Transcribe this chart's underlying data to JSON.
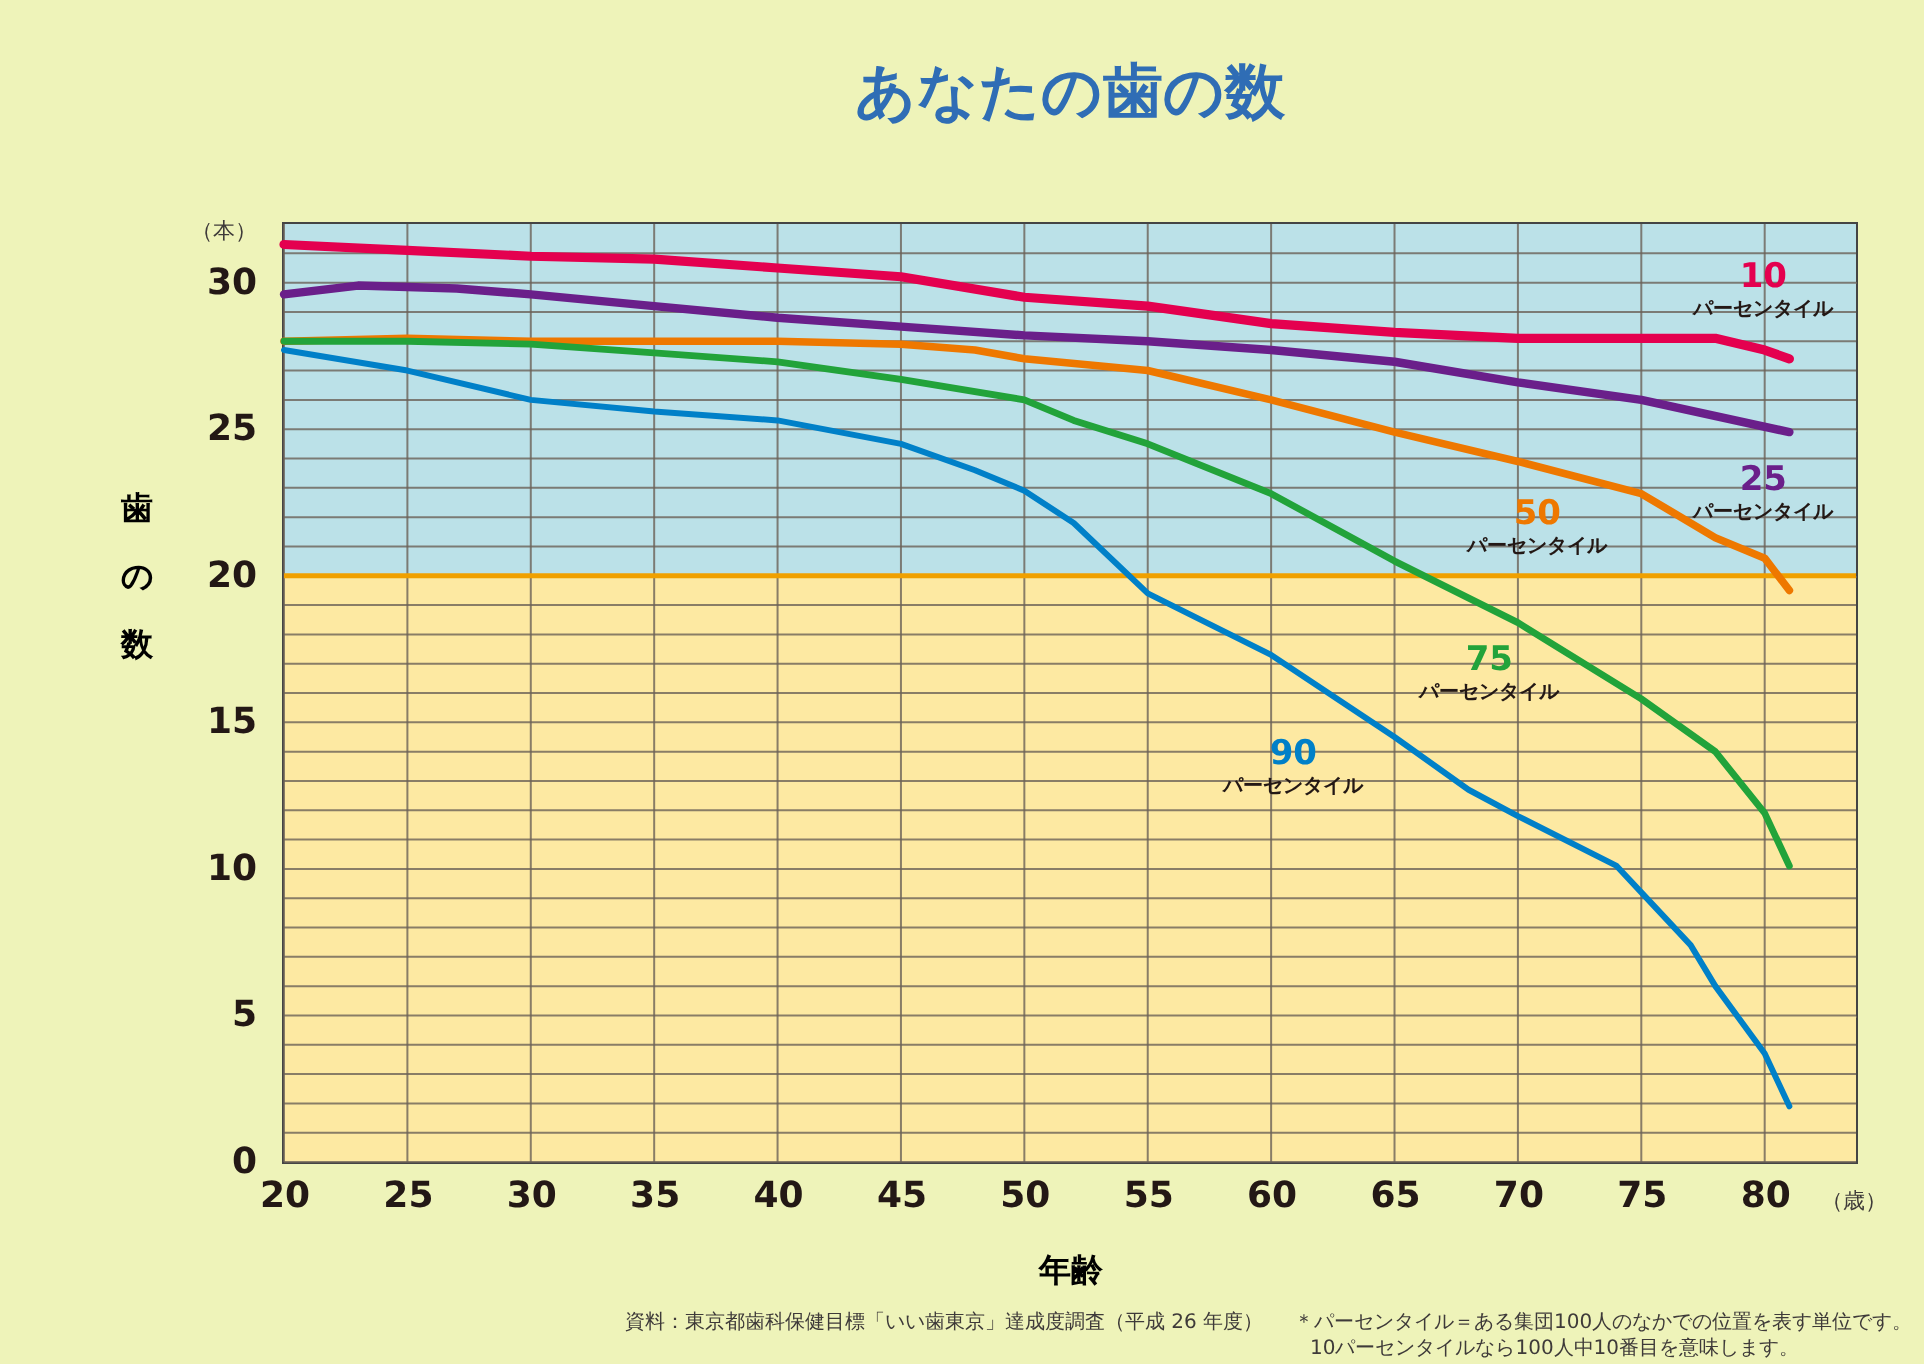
{
  "chart_data": {
    "type": "line",
    "title": "あなたの歯の数",
    "xlabel": "年齢",
    "ylabel": "歯の数",
    "xlim": [
      20,
      83.7
    ],
    "ylim": [
      0,
      32
    ],
    "xticks": [
      20,
      25,
      30,
      35,
      40,
      45,
      50,
      55,
      60,
      65,
      70,
      75,
      80
    ],
    "yticks": [
      0,
      {
        "value": 1,
        "label": null
      },
      {
        "value": 2,
        "label": null
      },
      {
        "value": 3,
        "label": null
      },
      {
        "value": 4,
        "label": null
      },
      5,
      {
        "value": 6,
        "label": null
      },
      {
        "value": 7,
        "label": null
      },
      {
        "value": 8,
        "label": null
      },
      {
        "value": 9,
        "label": null
      },
      10,
      {
        "value": 11,
        "label": null
      },
      {
        "value": 12,
        "label": null
      },
      {
        "value": 13,
        "label": null
      },
      {
        "value": 14,
        "label": null
      },
      15,
      {
        "value": 16,
        "label": null
      },
      {
        "value": 17,
        "label": null
      },
      {
        "value": 18,
        "label": null
      },
      {
        "value": 19,
        "label": null
      },
      20,
      {
        "value": 21,
        "label": null
      },
      {
        "value": 22,
        "label": null
      },
      {
        "value": 23,
        "label": null
      },
      {
        "value": 24,
        "label": null
      },
      25,
      {
        "value": 26,
        "label": null
      },
      {
        "value": 27,
        "label": null
      },
      {
        "value": 28,
        "label": null
      },
      {
        "value": 29,
        "label": null
      },
      30,
      {
        "value": 31,
        "label": null
      }
    ],
    "grid": true,
    "bands": [
      {
        "axis": "y",
        "from": 20,
        "to": 32,
        "color": "#bbe1e8"
      },
      {
        "axis": "y",
        "from": 0,
        "to": 20,
        "color": "#fde9a2"
      }
    ],
    "ref_lines": [
      {
        "axis": "y",
        "value": 20,
        "color": "#f0a000"
      }
    ],
    "series": [
      {
        "name": "10\nパーセンタイル",
        "color": "#e4004f",
        "x": [
          20,
          25,
          30,
          35,
          40,
          45,
          50,
          55,
          60,
          65,
          70,
          75,
          78,
          80,
          81
        ],
        "values": [
          31.3,
          31.1,
          30.9,
          30.8,
          30.5,
          30.2,
          29.5,
          29.2,
          28.6,
          28.3,
          28.1,
          28.1,
          28.1,
          27.7,
          27.4
        ]
      },
      {
        "name": "25\nパーセンタイル",
        "color": "#6a1f8a",
        "x": [
          20,
          23,
          27,
          30,
          35,
          40,
          45,
          50,
          55,
          60,
          65,
          70,
          75,
          81
        ],
        "values": [
          29.6,
          29.9,
          29.8,
          29.6,
          29.2,
          28.8,
          28.5,
          28.2,
          28.0,
          27.7,
          27.3,
          26.6,
          26.0,
          24.9
        ]
      },
      {
        "name": "50\nパーセンタイル",
        "color": "#ee7800",
        "x": [
          20,
          25,
          30,
          35,
          40,
          45,
          48,
          50,
          55,
          60,
          65,
          70,
          75,
          78,
          80,
          81
        ],
        "values": [
          28.0,
          28.1,
          28.0,
          28.0,
          28.0,
          27.9,
          27.7,
          27.4,
          27.0,
          26.0,
          24.9,
          23.9,
          22.8,
          21.3,
          20.6,
          19.5
        ]
      },
      {
        "name": "75\nパーセンタイル",
        "color": "#22a33a",
        "x": [
          20,
          25,
          30,
          35,
          40,
          45,
          50,
          52,
          55,
          60,
          65,
          70,
          75,
          78,
          80,
          81
        ],
        "values": [
          28.0,
          28.0,
          27.9,
          27.6,
          27.3,
          26.7,
          26.0,
          25.3,
          24.5,
          22.8,
          20.5,
          18.4,
          15.8,
          14.0,
          11.9,
          10.1
        ]
      },
      {
        "name": "90\nパーセンタイル",
        "color": "#0080c8",
        "x": [
          20,
          25,
          30,
          35,
          40,
          45,
          48,
          50,
          52,
          55,
          60,
          65,
          68,
          70,
          74,
          75,
          77,
          78,
          80,
          81
        ],
        "values": [
          27.7,
          27.0,
          26.0,
          25.6,
          25.3,
          24.5,
          23.6,
          22.9,
          21.8,
          19.4,
          17.3,
          14.5,
          12.7,
          11.8,
          10.1,
          9.2,
          7.4,
          6.0,
          3.7,
          1.9
        ]
      }
    ],
    "annotations": [
      "（本）",
      "（歳）",
      "資料：東京都歯科保健目標「いい歯東京」達成度調査（平成 26 年度）",
      "＊パーセンタイル＝ある集団100人のなかでの位置を表す単位です。",
      "10パーセンタイルなら100人中10番目を意味します。"
    ]
  }
}
